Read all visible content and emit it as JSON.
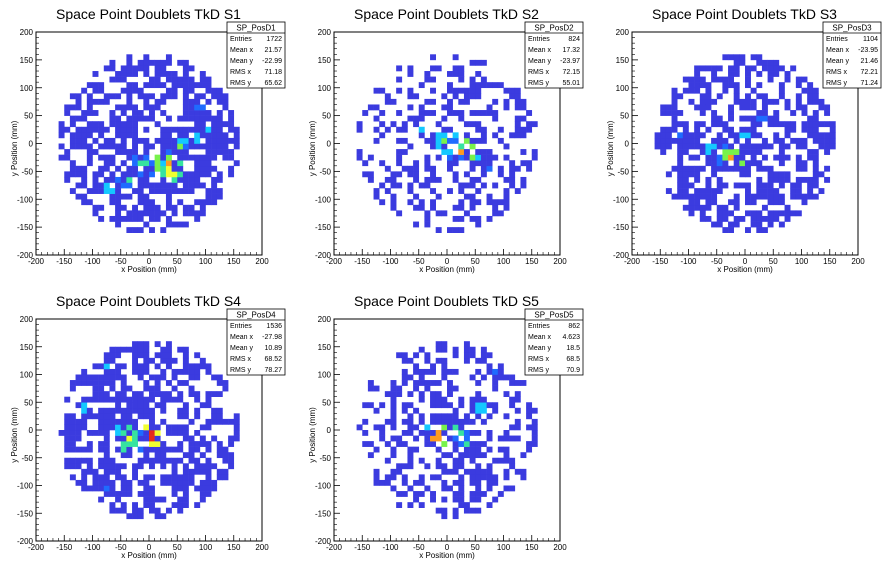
{
  "panels": [
    {
      "title": "Space Point Doublets TkD S1",
      "stats": {
        "name": "SP_PosD1",
        "rows": [
          {
            "label": "Entries",
            "value": "1722"
          },
          {
            "label": "Mean x",
            "value": "21.57"
          },
          {
            "label": "Mean y",
            "value": "-22.99"
          },
          {
            "label": "RMS x",
            "value": "71.18"
          },
          {
            "label": "RMS y",
            "value": "65.62"
          }
        ]
      },
      "xlabel": "x Position (mm)",
      "ylabel": "y Position (mm)"
    },
    {
      "title": "Space Point Doublets TkD S2",
      "stats": {
        "name": "SP_PosD2",
        "rows": [
          {
            "label": "Entries",
            "value": "824"
          },
          {
            "label": "Mean x",
            "value": "17.32"
          },
          {
            "label": "Mean y",
            "value": "-23.97"
          },
          {
            "label": "RMS x",
            "value": "72.15"
          },
          {
            "label": "RMS y",
            "value": "55.01"
          }
        ]
      },
      "xlabel": "x Position (mm)",
      "ylabel": "y Position (mm)"
    },
    {
      "title": "Space Point Doublets TkD S3",
      "stats": {
        "name": "SP_PosD3",
        "rows": [
          {
            "label": "Entries",
            "value": "1104"
          },
          {
            "label": "Mean x",
            "value": "-23.95"
          },
          {
            "label": "Mean y",
            "value": "21.46"
          },
          {
            "label": "RMS x",
            "value": "72.21"
          },
          {
            "label": "RMS y",
            "value": "71.24"
          }
        ]
      },
      "xlabel": "x Position (mm)",
      "ylabel": "y Position (mm)"
    },
    {
      "title": "Space Point Doublets TkD S4",
      "stats": {
        "name": "SP_PosD4",
        "rows": [
          {
            "label": "Entries",
            "value": "1536"
          },
          {
            "label": "Mean x",
            "value": "-27.98"
          },
          {
            "label": "Mean y",
            "value": "10.89"
          },
          {
            "label": "RMS x",
            "value": "68.52"
          },
          {
            "label": "RMS y",
            "value": "78.27"
          }
        ]
      },
      "xlabel": "x Position (mm)",
      "ylabel": "y Position (mm)"
    },
    {
      "title": "Space Point Doublets TkD S5",
      "stats": {
        "name": "SP_PosD5",
        "rows": [
          {
            "label": "Entries",
            "value": "862"
          },
          {
            "label": "Mean x",
            "value": "4.623"
          },
          {
            "label": "Mean y",
            "value": "18.5"
          },
          {
            "label": "RMS x",
            "value": "68.5"
          },
          {
            "label": "RMS y",
            "value": "70.9"
          }
        ]
      },
      "xlabel": "x Position (mm)",
      "ylabel": "y Position (mm)"
    }
  ],
  "chart_data": [
    {
      "type": "heatmap",
      "title": "Space Point Doublets TkD S1",
      "xlabel": "x Position (mm)",
      "ylabel": "y Position (mm)",
      "xlim": [
        -200,
        200
      ],
      "ylim": [
        -200,
        200
      ],
      "xticks": [
        -200,
        -150,
        -100,
        -50,
        0,
        50,
        100,
        150,
        200
      ],
      "yticks": [
        -200,
        -150,
        -100,
        -50,
        0,
        50,
        100,
        150,
        200
      ],
      "bin_width": 10,
      "fill_radius": 160,
      "background": {
        "level": 1,
        "density": 0.6
      },
      "hotspots": [
        {
          "x": -70,
          "y": -80,
          "level": 3,
          "prob": 0.85
        },
        {
          "x": -40,
          "y": -60,
          "level": 4,
          "prob": 0.8
        },
        {
          "x": -10,
          "y": -40,
          "level": 4,
          "prob": 0.8
        },
        {
          "x": 20,
          "y": -30,
          "level": 3,
          "prob": 0.8
        },
        {
          "x": 50,
          "y": -10,
          "level": 4,
          "prob": 0.8
        },
        {
          "x": 80,
          "y": 10,
          "level": 3,
          "prob": 0.75
        },
        {
          "x": 110,
          "y": 30,
          "level": 3,
          "prob": 0.7
        },
        {
          "x": 90,
          "y": 70,
          "level": 2,
          "prob": 0.7
        },
        {
          "x": -20,
          "y": 60,
          "level": 2,
          "prob": 0.5
        },
        {
          "x": 40,
          "y": -50,
          "level": 6,
          "prob": 0.9
        },
        {
          "x": 55,
          "y": -5,
          "level": 5,
          "prob": 0.9
        },
        {
          "x": 30,
          "y": -35,
          "level": 7,
          "prob": 0.9
        }
      ],
      "color_scale": [
        "#ffffff",
        "#3b3bdf",
        "#1f6bff",
        "#14c8ff",
        "#36e3a0",
        "#78f24b",
        "#f0ff30",
        "#ff9a1f",
        "#e52a1a"
      ]
    },
    {
      "type": "heatmap",
      "title": "Space Point Doublets TkD S2",
      "xlabel": "x Position (mm)",
      "ylabel": "y Position (mm)",
      "xlim": [
        -200,
        200
      ],
      "ylim": [
        -200,
        200
      ],
      "xticks": [
        -200,
        -150,
        -100,
        -50,
        0,
        50,
        100,
        150,
        200
      ],
      "yticks": [
        -200,
        -150,
        -100,
        -50,
        0,
        50,
        100,
        150,
        200
      ],
      "bin_width": 10,
      "fill_radius": 160,
      "background": {
        "level": 1,
        "density": 0.38
      },
      "hotspots": [
        {
          "x": -40,
          "y": 30,
          "level": 3,
          "prob": 0.8
        },
        {
          "x": -10,
          "y": 10,
          "level": 3,
          "prob": 0.8
        },
        {
          "x": 20,
          "y": -10,
          "level": 4,
          "prob": 0.85
        },
        {
          "x": 50,
          "y": -25,
          "level": 3,
          "prob": 0.8
        },
        {
          "x": 80,
          "y": -40,
          "level": 2,
          "prob": 0.75
        },
        {
          "x": 0,
          "y": 0,
          "level": 5,
          "prob": 0.9
        },
        {
          "x": 30,
          "y": -15,
          "level": 7,
          "prob": 0.9
        }
      ],
      "color_scale": [
        "#ffffff",
        "#3b3bdf",
        "#1f6bff",
        "#14c8ff",
        "#36e3a0",
        "#78f24b",
        "#f0ff30",
        "#ff9a1f",
        "#e52a1a"
      ]
    },
    {
      "type": "heatmap",
      "title": "Space Point Doublets TkD S3",
      "xlabel": "x Position (mm)",
      "ylabel": "y Position (mm)",
      "xlim": [
        -200,
        200
      ],
      "ylim": [
        -200,
        200
      ],
      "xticks": [
        -200,
        -150,
        -100,
        -50,
        0,
        50,
        100,
        150,
        200
      ],
      "yticks": [
        -200,
        -150,
        -100,
        -50,
        0,
        50,
        100,
        150,
        200
      ],
      "bin_width": 10,
      "fill_radius": 160,
      "background": {
        "level": 1,
        "density": 0.55
      },
      "hotspots": [
        {
          "x": -100,
          "y": 80,
          "level": 3,
          "prob": 0.7
        },
        {
          "x": -120,
          "y": 20,
          "level": 2,
          "prob": 0.7
        },
        {
          "x": -60,
          "y": -10,
          "level": 3,
          "prob": 0.7
        },
        {
          "x": -30,
          "y": -20,
          "level": 4,
          "prob": 0.8
        },
        {
          "x": 0,
          "y": 10,
          "level": 3,
          "prob": 0.6
        },
        {
          "x": -20,
          "y": -25,
          "level": 7,
          "prob": 0.9
        },
        {
          "x": 30,
          "y": 40,
          "level": 2,
          "prob": 0.6
        }
      ],
      "color_scale": [
        "#ffffff",
        "#3b3bdf",
        "#1f6bff",
        "#14c8ff",
        "#36e3a0",
        "#78f24b",
        "#f0ff30",
        "#ff9a1f",
        "#e52a1a"
      ]
    },
    {
      "type": "heatmap",
      "title": "Space Point Doublets TkD S4",
      "xlabel": "x Position (mm)",
      "ylabel": "y Position (mm)",
      "xlim": [
        -200,
        200
      ],
      "ylim": [
        -200,
        200
      ],
      "xticks": [
        -200,
        -150,
        -100,
        -50,
        0,
        50,
        100,
        150,
        200
      ],
      "yticks": [
        -200,
        -150,
        -100,
        -50,
        0,
        50,
        100,
        150,
        200
      ],
      "bin_width": 10,
      "fill_radius": 160,
      "background": {
        "level": 1,
        "density": 0.6
      },
      "hotspots": [
        {
          "x": -80,
          "y": 110,
          "level": 3,
          "prob": 0.7
        },
        {
          "x": -110,
          "y": 40,
          "level": 3,
          "prob": 0.7
        },
        {
          "x": -60,
          "y": 0,
          "level": 3,
          "prob": 0.7
        },
        {
          "x": -30,
          "y": -20,
          "level": 4,
          "prob": 0.8
        },
        {
          "x": 0,
          "y": -30,
          "level": 3,
          "prob": 0.7
        },
        {
          "x": -80,
          "y": -100,
          "level": 2,
          "prob": 0.6
        },
        {
          "x": 0,
          "y": -10,
          "level": 8,
          "prob": 0.95
        },
        {
          "x": -40,
          "y": -15,
          "level": 6,
          "prob": 0.8
        }
      ],
      "color_scale": [
        "#ffffff",
        "#3b3bdf",
        "#1f6bff",
        "#14c8ff",
        "#36e3a0",
        "#78f24b",
        "#f0ff30",
        "#ff9a1f",
        "#e52a1a"
      ]
    },
    {
      "type": "heatmap",
      "title": "Space Point Doublets TkD S5",
      "xlabel": "x Position (mm)",
      "ylabel": "y Position (mm)",
      "xlim": [
        -200,
        200
      ],
      "ylim": [
        -200,
        200
      ],
      "xticks": [
        -200,
        -150,
        -100,
        -50,
        0,
        50,
        100,
        150,
        200
      ],
      "yticks": [
        -200,
        -150,
        -100,
        -50,
        0,
        50,
        100,
        150,
        200
      ],
      "bin_width": 10,
      "fill_radius": 160,
      "background": {
        "level": 1,
        "density": 0.4
      },
      "hotspots": [
        {
          "x": -40,
          "y": 10,
          "level": 3,
          "prob": 0.6
        },
        {
          "x": 20,
          "y": 0,
          "level": 4,
          "prob": 0.7
        },
        {
          "x": 60,
          "y": 40,
          "level": 3,
          "prob": 0.6
        },
        {
          "x": 90,
          "y": 100,
          "level": 2,
          "prob": 0.5
        },
        {
          "x": -20,
          "y": -10,
          "level": 7,
          "prob": 0.9
        },
        {
          "x": 40,
          "y": -30,
          "level": 4,
          "prob": 0.6
        }
      ],
      "color_scale": [
        "#ffffff",
        "#3b3bdf",
        "#1f6bff",
        "#14c8ff",
        "#36e3a0",
        "#78f24b",
        "#f0ff30",
        "#ff9a1f",
        "#e52a1a"
      ]
    }
  ]
}
